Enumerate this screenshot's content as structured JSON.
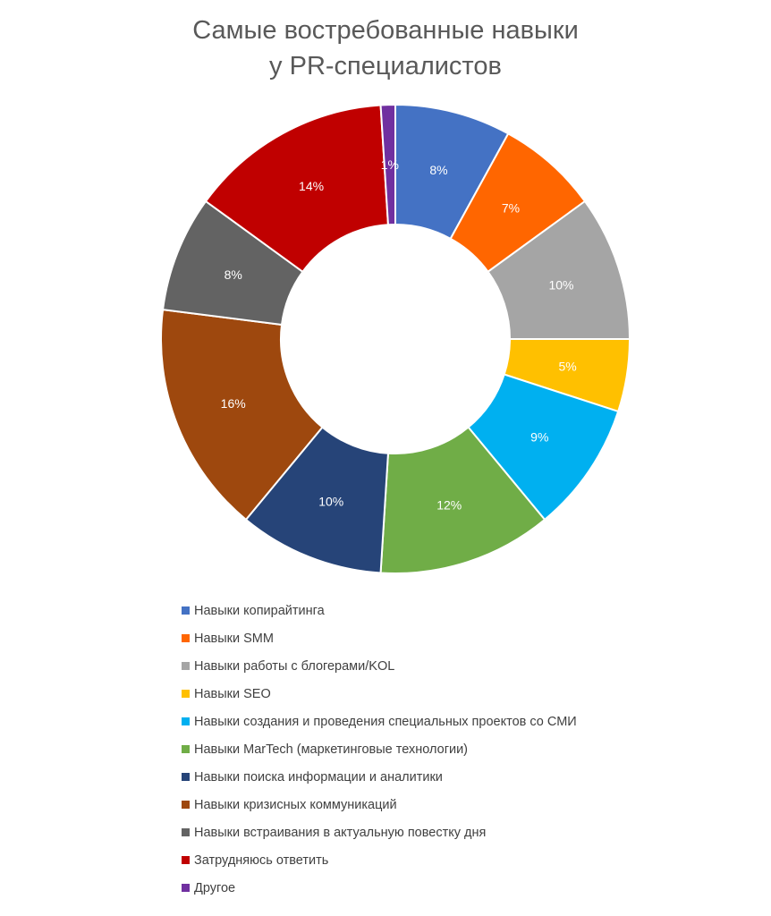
{
  "chart_data": {
    "type": "pie",
    "subtype": "donut",
    "title_lines": [
      "Самые востребованные навыки",
      "у PR-специалистов"
    ],
    "legend_position": "bottom",
    "slices": [
      {
        "label": "Навыки копирайтинга",
        "value": 8,
        "display": "8%",
        "color": "#4472C4"
      },
      {
        "label": "Навыки SMM",
        "value": 7,
        "display": "7%",
        "color": "#FF6600"
      },
      {
        "label": "Навыки работы с блогерами/KOL",
        "value": 10,
        "display": "10%",
        "color": "#A5A5A5"
      },
      {
        "label": "Навыки SEO",
        "value": 5,
        "display": "5%",
        "color": "#FFC000"
      },
      {
        "label": "Навыки создания и проведения специальных проектов со СМИ",
        "value": 9,
        "display": "9%",
        "color": "#00B0F0"
      },
      {
        "label": "Навыки MarTech (маркетинговые технологии)",
        "value": 12,
        "display": "12%",
        "color": "#70AD47"
      },
      {
        "label": "Навыки поиска информации и аналитики",
        "value": 10,
        "display": "10%",
        "color": "#264478"
      },
      {
        "label": "Навыки кризисных коммуникаций",
        "value": 16,
        "display": "16%",
        "color": "#9E480E"
      },
      {
        "label": "Навыки встраивания в актуальную повестку дня",
        "value": 8,
        "display": "8%",
        "color": "#636363"
      },
      {
        "label": "Затрудняюсь ответить",
        "value": 14,
        "display": "14%",
        "color": "#C00000"
      },
      {
        "label": "Другое",
        "value": 1,
        "display": "1%",
        "color": "#7030A0"
      }
    ]
  }
}
